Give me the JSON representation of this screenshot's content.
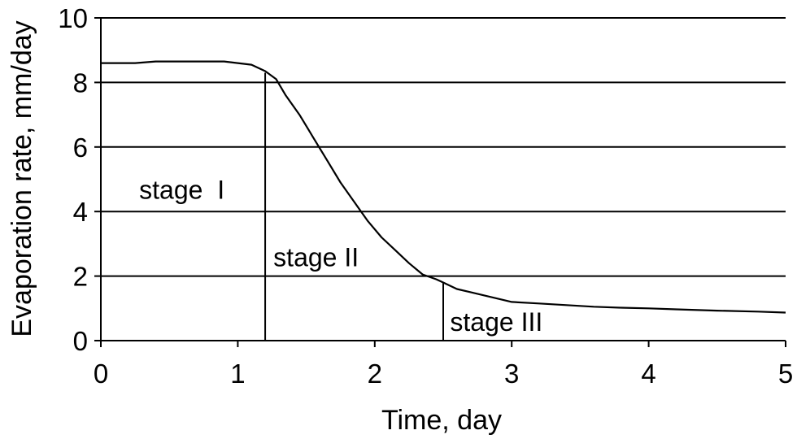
{
  "chart_data": {
    "type": "line",
    "title": "",
    "xlabel": "Time, day",
    "ylabel": "Evaporation rate, mm/day",
    "xlim": [
      0,
      5
    ],
    "ylim": [
      0,
      10
    ],
    "x_ticks": [
      0,
      1,
      2,
      3,
      4,
      5
    ],
    "y_ticks": [
      0,
      2,
      4,
      6,
      8,
      10
    ],
    "grid": "horizontal",
    "legend": "none",
    "colors": {
      "line": "#000000",
      "grid": "#000000"
    },
    "series": [
      {
        "x": [
          0,
          0.25,
          0.4,
          0.6,
          0.9,
          1.0,
          1.1,
          1.2,
          1.28,
          1.35,
          1.45,
          1.55,
          1.65,
          1.75,
          1.85,
          1.95,
          2.05,
          2.15,
          2.25,
          2.35,
          2.45,
          2.5,
          2.6,
          2.7,
          2.8,
          2.9,
          3.0,
          3.2,
          3.4,
          3.6,
          3.8,
          4.0,
          4.2,
          4.5,
          4.8,
          5.0
        ],
        "y": [
          8.6,
          8.6,
          8.65,
          8.65,
          8.65,
          8.6,
          8.55,
          8.35,
          8.1,
          7.6,
          7.0,
          6.3,
          5.6,
          4.9,
          4.3,
          3.7,
          3.2,
          2.8,
          2.4,
          2.05,
          1.9,
          1.8,
          1.6,
          1.5,
          1.4,
          1.3,
          1.2,
          1.15,
          1.1,
          1.05,
          1.02,
          1.0,
          0.97,
          0.93,
          0.9,
          0.87
        ]
      }
    ],
    "markers": [
      {
        "x": 1.2,
        "y_top": 8.3
      },
      {
        "x": 2.5,
        "y_top": 1.8
      }
    ],
    "annotations": [
      {
        "text": "stage  I",
        "x": 0.28,
        "y": 4.4
      },
      {
        "text": "stage II",
        "x": 1.26,
        "y": 2.3
      },
      {
        "text": "stage III",
        "x": 2.55,
        "y": 0.3
      }
    ]
  }
}
